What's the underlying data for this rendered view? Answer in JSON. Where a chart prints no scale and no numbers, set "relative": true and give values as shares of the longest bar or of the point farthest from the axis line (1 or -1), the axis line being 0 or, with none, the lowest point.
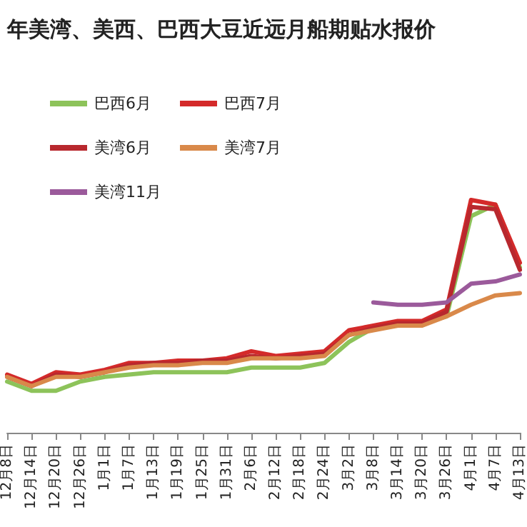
{
  "chart_data": {
    "type": "line",
    "title": "年美湾、美西、巴西大豆近远月船期贴水报价",
    "relative": true,
    "legend": "top left",
    "marker": "none",
    "line_style": "solid",
    "grid": false,
    "categories": [
      "12月8日",
      "12月14日",
      "12月20日",
      "12月26日",
      "1月1日",
      "1月7日",
      "1月13日",
      "1月19日",
      "1月25日",
      "1月31日",
      "2月6日",
      "2月12日",
      "2月18日",
      "2月24日",
      "3月2日",
      "3月8日",
      "3月14日",
      "3月20日",
      "3月26日",
      "4月1日",
      "4月7日",
      "4月13日"
    ],
    "series": [
      {
        "name": "巴西6月",
        "color": "#8dc35a",
        "values": [
          0.22,
          0.18,
          0.18,
          0.22,
          0.24,
          0.25,
          0.26,
          0.26,
          0.26,
          0.26,
          0.28,
          0.28,
          0.28,
          0.3,
          0.39,
          0.45,
          0.47,
          0.47,
          0.5,
          0.93,
          0.98,
          0.71
        ]
      },
      {
        "name": "巴西7月",
        "color": "#d42a2a",
        "values": [
          0.25,
          0.21,
          0.26,
          0.25,
          0.27,
          0.3,
          0.3,
          0.31,
          0.31,
          0.32,
          0.35,
          0.33,
          0.34,
          0.35,
          0.44,
          0.46,
          0.48,
          0.48,
          0.53,
          1.0,
          0.98,
          0.73
        ]
      },
      {
        "name": "美湾6月",
        "color": "#b8282e",
        "values": [
          0.24,
          0.2,
          0.25,
          0.24,
          0.26,
          0.29,
          0.3,
          0.3,
          0.31,
          0.31,
          0.33,
          0.32,
          0.33,
          0.34,
          0.42,
          0.45,
          0.47,
          0.47,
          0.52,
          0.97,
          0.96,
          0.7
        ]
      },
      {
        "name": "美湾7月",
        "color": "#d9894a",
        "values": [
          0.24,
          0.2,
          0.24,
          0.24,
          0.26,
          0.28,
          0.29,
          0.29,
          0.3,
          0.3,
          0.32,
          0.32,
          0.32,
          0.33,
          0.42,
          0.44,
          0.46,
          0.46,
          0.5,
          0.55,
          0.59,
          0.6
        ]
      },
      {
        "name": "美湾11月",
        "color": "#9b5a9b",
        "values": [
          null,
          null,
          null,
          null,
          null,
          null,
          null,
          null,
          null,
          null,
          null,
          null,
          null,
          null,
          null,
          0.56,
          0.55,
          0.55,
          0.56,
          0.64,
          0.65,
          0.68
        ]
      }
    ]
  }
}
